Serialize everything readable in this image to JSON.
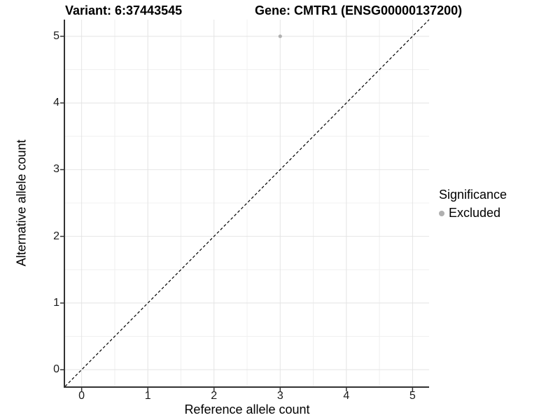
{
  "chart_data": {
    "type": "scatter",
    "titles": {
      "variant": "Variant: 6:37443545",
      "gene": "Gene: CMTR1 (ENSG00000137200)"
    },
    "xlabel": "Reference allele count",
    "ylabel": "Alternative allele count",
    "xlim": [
      -0.25,
      5.25
    ],
    "ylim": [
      -0.25,
      5.25
    ],
    "x_ticks": [
      0,
      1,
      2,
      3,
      4,
      5
    ],
    "y_ticks": [
      0,
      1,
      2,
      3,
      4,
      5
    ],
    "x_minor": [
      0.5,
      1.5,
      2.5,
      3.5,
      4.5
    ],
    "y_minor": [
      0.5,
      1.5,
      2.5,
      3.5,
      4.5
    ],
    "grid": true,
    "points": [
      {
        "x": 3,
        "y": 5,
        "significance": "Excluded"
      }
    ],
    "reference_line": {
      "from": [
        -0.25,
        -0.25
      ],
      "to": [
        5.25,
        5.25
      ],
      "style": "dashed",
      "color": "#000000"
    },
    "legend": {
      "title": "Significance",
      "position": "right",
      "items": [
        {
          "label": "Excluded",
          "color": "#b0b0b0",
          "marker": "circle"
        }
      ]
    },
    "colors": {
      "background": "#ffffff",
      "grid_major": "#e4e4e4",
      "grid_minor": "#f0f0f0",
      "axis": "#333333",
      "point": "#b0b0b0",
      "tick_text": "#1a1a1a"
    }
  }
}
